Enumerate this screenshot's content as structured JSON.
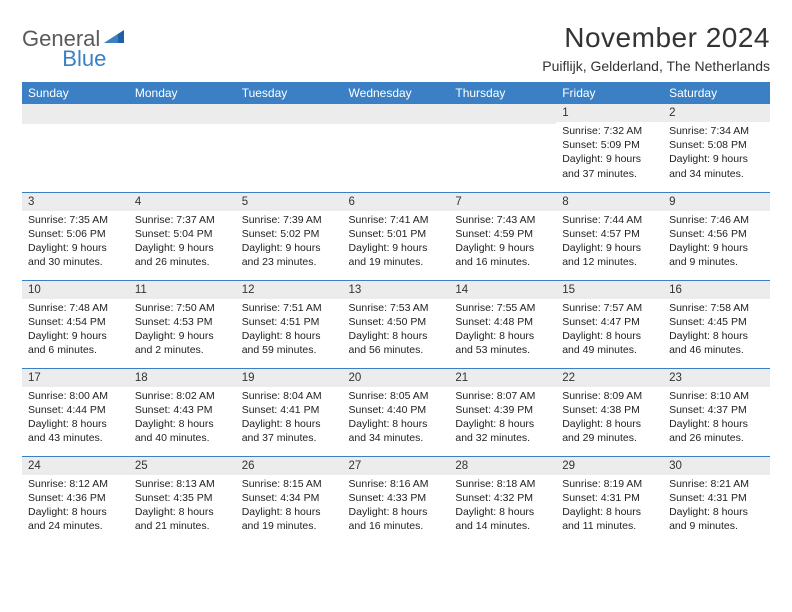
{
  "logo": {
    "part1": "General",
    "part2": "Blue"
  },
  "title": "November 2024",
  "subtitle": "Puiflijk, Gelderland, The Netherlands",
  "colors": {
    "header_bg": "#3b7fc4",
    "header_text": "#ffffff",
    "daynum_bg": "#ececec",
    "row_border": "#3b7fc4",
    "logo_gray": "#5a5a5a",
    "logo_blue": "#3b7fc4",
    "body_text": "#222222",
    "page_bg": "#ffffff"
  },
  "dayHeaders": [
    "Sunday",
    "Monday",
    "Tuesday",
    "Wednesday",
    "Thursday",
    "Friday",
    "Saturday"
  ],
  "weeks": [
    [
      null,
      null,
      null,
      null,
      null,
      {
        "n": "1",
        "sr": "Sunrise: 7:32 AM",
        "ss": "Sunset: 5:09 PM",
        "d1": "Daylight: 9 hours",
        "d2": "and 37 minutes."
      },
      {
        "n": "2",
        "sr": "Sunrise: 7:34 AM",
        "ss": "Sunset: 5:08 PM",
        "d1": "Daylight: 9 hours",
        "d2": "and 34 minutes."
      }
    ],
    [
      {
        "n": "3",
        "sr": "Sunrise: 7:35 AM",
        "ss": "Sunset: 5:06 PM",
        "d1": "Daylight: 9 hours",
        "d2": "and 30 minutes."
      },
      {
        "n": "4",
        "sr": "Sunrise: 7:37 AM",
        "ss": "Sunset: 5:04 PM",
        "d1": "Daylight: 9 hours",
        "d2": "and 26 minutes."
      },
      {
        "n": "5",
        "sr": "Sunrise: 7:39 AM",
        "ss": "Sunset: 5:02 PM",
        "d1": "Daylight: 9 hours",
        "d2": "and 23 minutes."
      },
      {
        "n": "6",
        "sr": "Sunrise: 7:41 AM",
        "ss": "Sunset: 5:01 PM",
        "d1": "Daylight: 9 hours",
        "d2": "and 19 minutes."
      },
      {
        "n": "7",
        "sr": "Sunrise: 7:43 AM",
        "ss": "Sunset: 4:59 PM",
        "d1": "Daylight: 9 hours",
        "d2": "and 16 minutes."
      },
      {
        "n": "8",
        "sr": "Sunrise: 7:44 AM",
        "ss": "Sunset: 4:57 PM",
        "d1": "Daylight: 9 hours",
        "d2": "and 12 minutes."
      },
      {
        "n": "9",
        "sr": "Sunrise: 7:46 AM",
        "ss": "Sunset: 4:56 PM",
        "d1": "Daylight: 9 hours",
        "d2": "and 9 minutes."
      }
    ],
    [
      {
        "n": "10",
        "sr": "Sunrise: 7:48 AM",
        "ss": "Sunset: 4:54 PM",
        "d1": "Daylight: 9 hours",
        "d2": "and 6 minutes."
      },
      {
        "n": "11",
        "sr": "Sunrise: 7:50 AM",
        "ss": "Sunset: 4:53 PM",
        "d1": "Daylight: 9 hours",
        "d2": "and 2 minutes."
      },
      {
        "n": "12",
        "sr": "Sunrise: 7:51 AM",
        "ss": "Sunset: 4:51 PM",
        "d1": "Daylight: 8 hours",
        "d2": "and 59 minutes."
      },
      {
        "n": "13",
        "sr": "Sunrise: 7:53 AM",
        "ss": "Sunset: 4:50 PM",
        "d1": "Daylight: 8 hours",
        "d2": "and 56 minutes."
      },
      {
        "n": "14",
        "sr": "Sunrise: 7:55 AM",
        "ss": "Sunset: 4:48 PM",
        "d1": "Daylight: 8 hours",
        "d2": "and 53 minutes."
      },
      {
        "n": "15",
        "sr": "Sunrise: 7:57 AM",
        "ss": "Sunset: 4:47 PM",
        "d1": "Daylight: 8 hours",
        "d2": "and 49 minutes."
      },
      {
        "n": "16",
        "sr": "Sunrise: 7:58 AM",
        "ss": "Sunset: 4:45 PM",
        "d1": "Daylight: 8 hours",
        "d2": "and 46 minutes."
      }
    ],
    [
      {
        "n": "17",
        "sr": "Sunrise: 8:00 AM",
        "ss": "Sunset: 4:44 PM",
        "d1": "Daylight: 8 hours",
        "d2": "and 43 minutes."
      },
      {
        "n": "18",
        "sr": "Sunrise: 8:02 AM",
        "ss": "Sunset: 4:43 PM",
        "d1": "Daylight: 8 hours",
        "d2": "and 40 minutes."
      },
      {
        "n": "19",
        "sr": "Sunrise: 8:04 AM",
        "ss": "Sunset: 4:41 PM",
        "d1": "Daylight: 8 hours",
        "d2": "and 37 minutes."
      },
      {
        "n": "20",
        "sr": "Sunrise: 8:05 AM",
        "ss": "Sunset: 4:40 PM",
        "d1": "Daylight: 8 hours",
        "d2": "and 34 minutes."
      },
      {
        "n": "21",
        "sr": "Sunrise: 8:07 AM",
        "ss": "Sunset: 4:39 PM",
        "d1": "Daylight: 8 hours",
        "d2": "and 32 minutes."
      },
      {
        "n": "22",
        "sr": "Sunrise: 8:09 AM",
        "ss": "Sunset: 4:38 PM",
        "d1": "Daylight: 8 hours",
        "d2": "and 29 minutes."
      },
      {
        "n": "23",
        "sr": "Sunrise: 8:10 AM",
        "ss": "Sunset: 4:37 PM",
        "d1": "Daylight: 8 hours",
        "d2": "and 26 minutes."
      }
    ],
    [
      {
        "n": "24",
        "sr": "Sunrise: 8:12 AM",
        "ss": "Sunset: 4:36 PM",
        "d1": "Daylight: 8 hours",
        "d2": "and 24 minutes."
      },
      {
        "n": "25",
        "sr": "Sunrise: 8:13 AM",
        "ss": "Sunset: 4:35 PM",
        "d1": "Daylight: 8 hours",
        "d2": "and 21 minutes."
      },
      {
        "n": "26",
        "sr": "Sunrise: 8:15 AM",
        "ss": "Sunset: 4:34 PM",
        "d1": "Daylight: 8 hours",
        "d2": "and 19 minutes."
      },
      {
        "n": "27",
        "sr": "Sunrise: 8:16 AM",
        "ss": "Sunset: 4:33 PM",
        "d1": "Daylight: 8 hours",
        "d2": "and 16 minutes."
      },
      {
        "n": "28",
        "sr": "Sunrise: 8:18 AM",
        "ss": "Sunset: 4:32 PM",
        "d1": "Daylight: 8 hours",
        "d2": "and 14 minutes."
      },
      {
        "n": "29",
        "sr": "Sunrise: 8:19 AM",
        "ss": "Sunset: 4:31 PM",
        "d1": "Daylight: 8 hours",
        "d2": "and 11 minutes."
      },
      {
        "n": "30",
        "sr": "Sunrise: 8:21 AM",
        "ss": "Sunset: 4:31 PM",
        "d1": "Daylight: 8 hours",
        "d2": "and 9 minutes."
      }
    ]
  ]
}
